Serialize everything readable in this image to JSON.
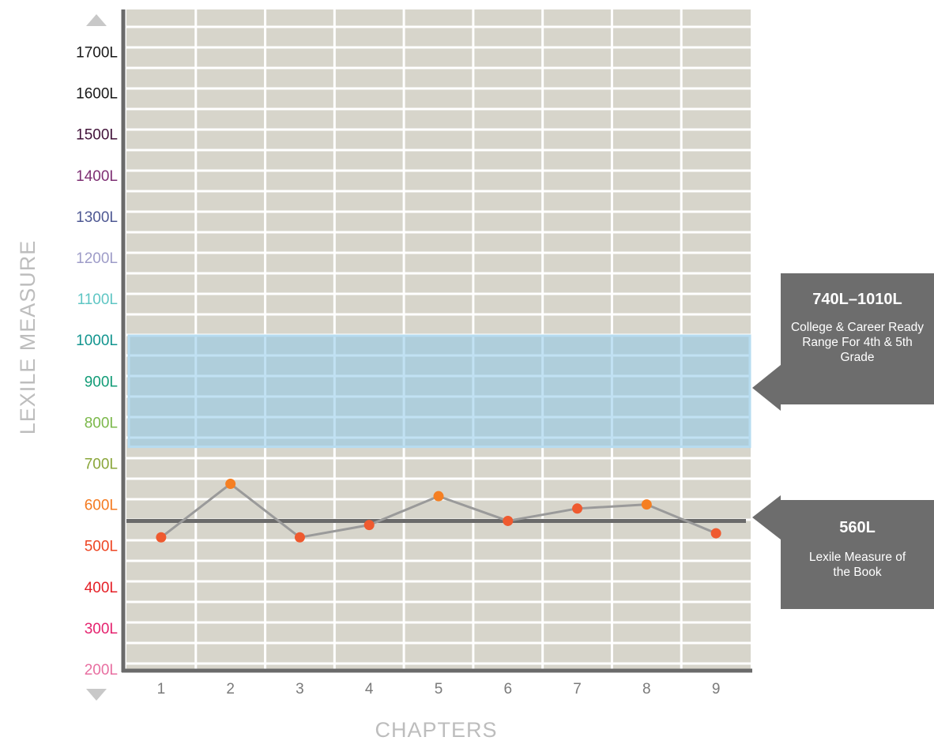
{
  "chart_data": {
    "type": "line",
    "xlabel": "CHAPTERS",
    "ylabel": "LEXILE MEASURE",
    "categories": [
      "1",
      "2",
      "3",
      "4",
      "5",
      "6",
      "7",
      "8",
      "9"
    ],
    "y_ticks": [
      "200L",
      "300L",
      "400L",
      "500L",
      "600L",
      "700L",
      "800L",
      "900L",
      "1000L",
      "1100L",
      "1200L",
      "1300L",
      "1400L",
      "1500L",
      "1600L",
      "1700L"
    ],
    "y_tick_colors": [
      "#e86fa1",
      "#e5236f",
      "#e52027",
      "#ee4523",
      "#f47a20",
      "#8aa63a",
      "#7bb84a",
      "#129c77",
      "#12958f",
      "#5fc6c4",
      "#9e9cc8",
      "#4e5893",
      "#7e2f73",
      "#42133a",
      "#1a1a1a",
      "#1a1a1a"
    ],
    "ylim": [
      200,
      1700
    ],
    "series": [
      {
        "values": [
          520,
          650,
          520,
          550,
          620,
          560,
          590,
          600,
          530
        ]
      }
    ],
    "point_colors": [
      "#ef5a2f",
      "#f57f22",
      "#ef5a2f",
      "#ef5a2f",
      "#f57f22",
      "#ef5a2f",
      "#ef5a2f",
      "#f57f22",
      "#ef5a2f"
    ],
    "reference_line": {
      "value": 560
    },
    "band": {
      "from": 740,
      "to": 1010
    }
  },
  "callouts": {
    "range": {
      "title": "740L–1010L",
      "text": "College & Career Ready Range For 4th & 5th Grade"
    },
    "book": {
      "title": "560L",
      "text": "Lexile Measure of the Book"
    }
  }
}
